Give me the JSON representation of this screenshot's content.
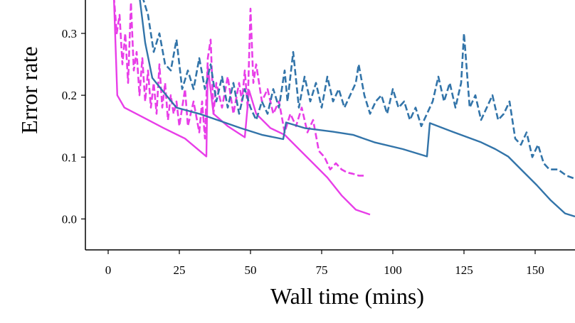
{
  "chart_data": {
    "type": "line",
    "title": "",
    "xlabel": "Wall time (mins)",
    "ylabel": "Error rate",
    "xlim": [
      -8,
      164
    ],
    "ylim": [
      -0.05,
      0.354
    ],
    "xticks": [
      0,
      25,
      50,
      75,
      100,
      125,
      150
    ],
    "xtick_labels": [
      "0",
      "25",
      "50",
      "75",
      "100",
      "125",
      "150"
    ],
    "yticks": [
      0.0,
      0.1,
      0.2,
      0.3
    ],
    "ytick_labels": [
      "0.0",
      "0.1",
      "0.2",
      "0.3"
    ],
    "grid": false,
    "colors": {
      "blue": "#3274a9",
      "magenta": "#e83ee8"
    },
    "series": [
      {
        "color": "#e83ee8",
        "style": "solid",
        "x": [
          2,
          3.2,
          5.7,
          12,
          19.5,
          27,
          34.5,
          35,
          37,
          42,
          48,
          49.5,
          52,
          57,
          62,
          67,
          72,
          77,
          82,
          87,
          92
        ],
        "y": [
          0.36,
          0.2,
          0.18,
          0.165,
          0.147,
          0.13,
          0.101,
          0.247,
          0.17,
          0.15,
          0.132,
          0.208,
          0.17,
          0.147,
          0.136,
          0.113,
          0.09,
          0.067,
          0.038,
          0.015,
          0.007
        ]
      },
      {
        "color": "#e83ee8",
        "style": "dashed",
        "x": [
          2,
          3,
          4,
          5,
          6,
          7,
          8,
          9,
          10,
          11,
          12,
          13,
          14,
          15,
          16,
          17,
          18,
          19,
          20,
          21,
          22,
          23,
          24,
          25,
          26,
          27,
          28,
          30,
          32,
          33,
          34,
          35,
          36,
          37,
          38,
          40,
          42,
          44,
          46,
          47,
          48,
          49,
          50,
          51,
          52,
          54,
          56,
          58,
          60,
          62,
          64,
          66,
          68,
          70,
          72,
          74,
          76,
          78,
          80,
          82,
          84,
          86,
          88,
          90
        ],
        "y": [
          0.36,
          0.3,
          0.33,
          0.25,
          0.3,
          0.22,
          0.35,
          0.24,
          0.27,
          0.2,
          0.26,
          0.19,
          0.24,
          0.18,
          0.22,
          0.17,
          0.25,
          0.18,
          0.22,
          0.16,
          0.2,
          0.17,
          0.19,
          0.15,
          0.18,
          0.21,
          0.15,
          0.19,
          0.14,
          0.19,
          0.13,
          0.26,
          0.29,
          0.17,
          0.22,
          0.18,
          0.23,
          0.17,
          0.22,
          0.19,
          0.24,
          0.18,
          0.34,
          0.22,
          0.25,
          0.19,
          0.21,
          0.17,
          0.19,
          0.14,
          0.17,
          0.15,
          0.18,
          0.14,
          0.16,
          0.11,
          0.1,
          0.08,
          0.09,
          0.08,
          0.075,
          0.073,
          0.07,
          0.07
        ]
      },
      {
        "color": "#3274a9",
        "style": "solid",
        "x": [
          11,
          13,
          15.5,
          19.5,
          24,
          32,
          39,
          46.5,
          54,
          61.5,
          62.5,
          69,
          79,
          86,
          93.5,
          103.5,
          112,
          113,
          121,
          131,
          136,
          140.5,
          145.5,
          150.5,
          155.5,
          160.5,
          164
        ],
        "y": [
          0.36,
          0.285,
          0.228,
          0.205,
          0.18,
          0.17,
          0.159,
          0.147,
          0.136,
          0.129,
          0.156,
          0.147,
          0.141,
          0.136,
          0.124,
          0.113,
          0.101,
          0.155,
          0.141,
          0.124,
          0.113,
          0.101,
          0.078,
          0.055,
          0.03,
          0.009,
          0.004
        ]
      },
      {
        "color": "#3274a9",
        "style": "dashed",
        "x": [
          12,
          14,
          16,
          18,
          20,
          22,
          24,
          26,
          28,
          30,
          32,
          34,
          36,
          38,
          40,
          42,
          44,
          46,
          48,
          50,
          52,
          54,
          56,
          58,
          60,
          62,
          63,
          65,
          67,
          69,
          71,
          73,
          75,
          77,
          79,
          81,
          83,
          85,
          87,
          88,
          90,
          92,
          94,
          96,
          98,
          100,
          102,
          104,
          106,
          108,
          110,
          112,
          114,
          116,
          118,
          120,
          122,
          124,
          125,
          127,
          129,
          131,
          133,
          135,
          137,
          139,
          141,
          143,
          145,
          147,
          149,
          151,
          153,
          155,
          158,
          161,
          164
        ],
        "y": [
          0.36,
          0.33,
          0.27,
          0.3,
          0.25,
          0.24,
          0.29,
          0.21,
          0.24,
          0.21,
          0.26,
          0.21,
          0.25,
          0.19,
          0.23,
          0.18,
          0.22,
          0.17,
          0.21,
          0.18,
          0.16,
          0.19,
          0.17,
          0.21,
          0.18,
          0.24,
          0.19,
          0.27,
          0.18,
          0.23,
          0.19,
          0.22,
          0.18,
          0.23,
          0.19,
          0.21,
          0.18,
          0.2,
          0.22,
          0.25,
          0.2,
          0.17,
          0.19,
          0.2,
          0.17,
          0.21,
          0.18,
          0.19,
          0.16,
          0.18,
          0.15,
          0.17,
          0.19,
          0.23,
          0.19,
          0.22,
          0.18,
          0.22,
          0.3,
          0.18,
          0.2,
          0.16,
          0.18,
          0.2,
          0.16,
          0.17,
          0.19,
          0.13,
          0.12,
          0.14,
          0.1,
          0.12,
          0.09,
          0.08,
          0.08,
          0.07,
          0.065
        ]
      }
    ]
  }
}
